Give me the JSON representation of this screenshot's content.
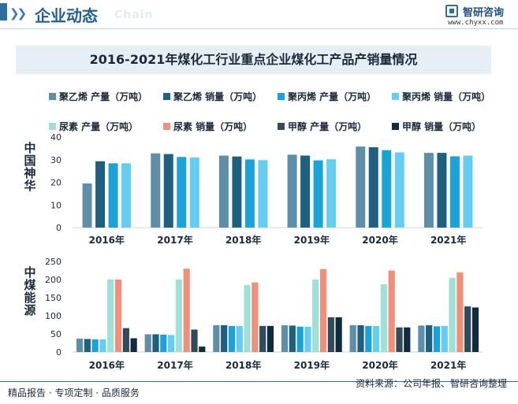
{
  "header": {
    "title": "企业动态",
    "subtitle_en": "Chain",
    "logo_name": "智研咨询",
    "logo_url": "www.chyxx.com"
  },
  "footer": {
    "left": "精品报告 · 专项定制 · 品质服务",
    "source": "资料来源：公司年报、智研咨询整理"
  },
  "colors": {
    "s0": "#5f8ea8",
    "s1": "#1f5f80",
    "s2": "#1aa3d9",
    "s3": "#66ccf2",
    "s4": "#9fe0d8",
    "s5": "#f0907a",
    "s6": "#2f4b5c",
    "s7": "#102b3d"
  },
  "chart_data": {
    "type": "bar",
    "title": "2016-2021年煤化工行业重点企业煤化工产品产销量情况",
    "categories": [
      "2016年",
      "2017年",
      "2018年",
      "2019年",
      "2020年",
      "2021年"
    ],
    "legend": [
      "聚乙烯 产量（万吨）",
      "聚乙烯 销量（万吨）",
      "聚丙烯 产量（万吨）",
      "聚丙烯 销量（万吨）",
      "尿素 产量（万吨）",
      "尿素 销量（万吨）",
      "甲醇 产量（万吨）",
      "甲醇 销量（万吨）"
    ],
    "panels": [
      {
        "label": "中国神华",
        "ylim": [
          0,
          40
        ],
        "yticks": [
          0,
          10,
          20,
          30,
          40
        ],
        "series": [
          {
            "name": "聚乙烯 产量（万吨）",
            "values": [
              19.5,
              32.8,
              31.8,
              32.2,
              35.8,
              33.0
            ]
          },
          {
            "name": "聚乙烯 销量（万吨）",
            "values": [
              29.3,
              32.5,
              31.4,
              31.8,
              35.5,
              33.0
            ]
          },
          {
            "name": "聚丙烯 产量（万吨）",
            "values": [
              28.4,
              31.2,
              30.1,
              29.7,
              34.2,
              31.5
            ]
          },
          {
            "name": "聚丙烯 销量（万吨）",
            "values": [
              28.4,
              31.0,
              29.8,
              30.2,
              33.2,
              31.8
            ]
          }
        ]
      },
      {
        "label": "中煤能源",
        "ylim": [
          0,
          250
        ],
        "yticks": [
          0,
          50,
          100,
          150,
          200,
          250
        ],
        "series": [
          {
            "name": "聚乙烯 产量（万吨）",
            "values": [
              37,
              49,
              74,
              74,
              74,
              73
            ]
          },
          {
            "name": "聚乙烯 销量（万吨）",
            "values": [
              36,
              49,
              74,
              73,
              74,
              74
            ]
          },
          {
            "name": "聚丙烯 产量（万吨）",
            "values": [
              35,
              48,
              72,
              70,
              72,
              71
            ]
          },
          {
            "name": "聚丙烯 销量（万吨）",
            "values": [
              35,
              47,
              72,
              70,
              72,
              72
            ]
          },
          {
            "name": "尿素 产量（万吨）",
            "values": [
              200,
              200,
              185,
              200,
              187,
              205
            ]
          },
          {
            "name": "尿素 销量（万吨）",
            "values": [
              200,
              230,
              192,
              229,
              225,
              220
            ]
          },
          {
            "name": "甲醇 产量（万吨）",
            "values": [
              66,
              62,
              72,
              96,
              68,
              126
            ]
          },
          {
            "name": "甲醇 销量（万吨）",
            "values": [
              38,
              15,
              72,
              96,
              68,
              123
            ]
          }
        ]
      }
    ]
  }
}
